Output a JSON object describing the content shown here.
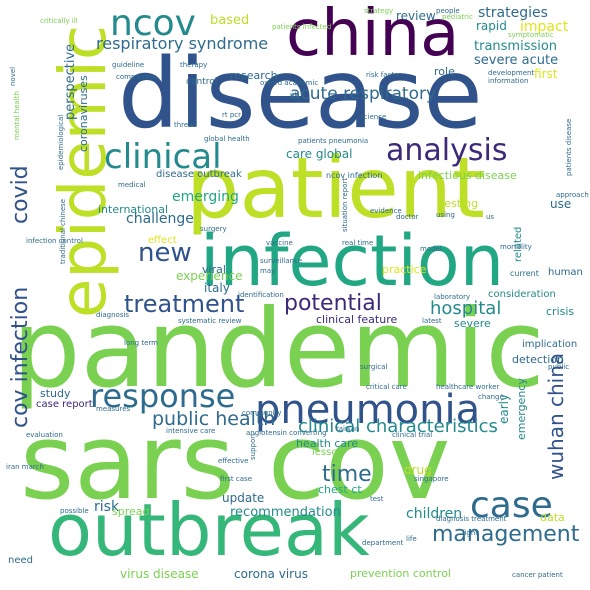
{
  "words": {
    "disease": "disease",
    "pandemic": "pandemic",
    "sars_cov": "sars cov",
    "patient": "patient",
    "infection": "infection",
    "outbreak": "outbreak",
    "china": "china",
    "epidemic": "epidemic",
    "ncov": "ncov",
    "clinical": "clinical",
    "analysis": "analysis",
    "pneumonia": "pneumonia",
    "response": "response",
    "treatment": "treatment",
    "potential": "potential",
    "case": "case",
    "cov_infection": "cov infection",
    "covid": "covid",
    "new": "new",
    "management": "management",
    "wuhan_china": "wuhan china",
    "time": "time",
    "respiratory_syndrome": "respiratory syndrome",
    "acute_respiratory": "acute respiratory",
    "public_health": "public health",
    "clinical_characteristics": "clinical characteristics",
    "hospital": "hospital",
    "strategies": "strategies",
    "transmission": "transmission",
    "severe_acute": "severe acute",
    "emerging": "emerging",
    "challenge": "challenge",
    "recommendation": "recommendation",
    "children": "children",
    "outbreak_small": "corona virus",
    "virus_disease": "virus disease",
    "prevention_control": "prevention control",
    "risk": "risk",
    "update": "update",
    "experience": "experience",
    "italy": "italy",
    "viral": "viral",
    "international": "international",
    "perspective": "perspective",
    "coronaviruses": "coronaviruses",
    "based": "based",
    "review": "review",
    "impact": "impact",
    "rapid": "rapid",
    "first": "first",
    "role": "role",
    "research": "research",
    "care_global": "care global",
    "infectious_disease": "infectious disease",
    "testing": "testing",
    "use": "use",
    "related": "related",
    "human": "human",
    "practice": "practice",
    "consideration": "consideration",
    "clinical_feature": "clinical feature",
    "severe": "severe",
    "crisis": "crisis",
    "implication": "implication",
    "detection": "detection",
    "early": "early",
    "emergency": "emergency",
    "health_care": "health care",
    "drug": "drug",
    "chest_ct": "chest ct",
    "study": "study",
    "case_report": "case report",
    "data": "data",
    "lesson": "lesson",
    "spread": "spread",
    "need": "need",
    "effect": "effect",
    "critically_ill": "critically ill",
    "patients_infected": "patients infected",
    "pediatric": "pediatric",
    "symptomatic": "symptomatic",
    "development": "development",
    "information": "information",
    "guideline": "guideline",
    "therapy": "therapy",
    "comparison": "comparison",
    "control": "control",
    "risk_factor": "risk factor",
    "mental_health": "mental health",
    "patients_disease": "patients disease",
    "medical": "medical",
    "disease_outbreak": "disease outbreak",
    "ncov_infection": "ncov infection",
    "evidence": "evidence",
    "global_health": "global health",
    "patients_pneumonia": "patients pneumonia",
    "science": "science",
    "surgery": "surgery",
    "vaccine": "vaccine",
    "real_time": "real time",
    "model": "model",
    "current": "current",
    "mortality": "mortality",
    "surveillance": "surveillance",
    "identification": "identification",
    "laboratory": "laboratory",
    "diagnosis": "diagnosis",
    "systematic_review": "systematic review",
    "long_term": "long term",
    "healthcare_worker": "healthcare worker",
    "critical_care": "critical care",
    "community": "community",
    "intensive_care": "intensive care",
    "effective": "effective",
    "iran_march": "iran march",
    "first_case": "first case",
    "taiwan": "taiwan",
    "evaluation": "evaluation",
    "possible": "possible",
    "diagnosis_treatment": "diagnosis treatment",
    "fight": "fight",
    "cancer_patient": "cancer patient",
    "life": "life",
    "test": "test",
    "singapore": "singapore",
    "clinical_trial": "clinical trial",
    "change": "change",
    "public": "public",
    "latest": "latest",
    "surgical": "surgical",
    "uk": "uk",
    "us": "us",
    "using": "using",
    "doctor": "doctor",
    "people": "people",
    "strategy": "strategy",
    "rt_pcr": "rt pcr",
    "threat": "threat",
    "infection_control": "infection control",
    "may": "may",
    "approach": "approach",
    "epidemiological": "epidemiological",
    "situation_report": "situation report",
    "traditional_chinese": "traditional chinese",
    "angiotensin_converting": "angiotensin converting",
    "measures": "measures",
    "support": "support",
    "department": "department",
    "novel": "novel",
    "oxford_academic": "oxford academic"
  }
}
